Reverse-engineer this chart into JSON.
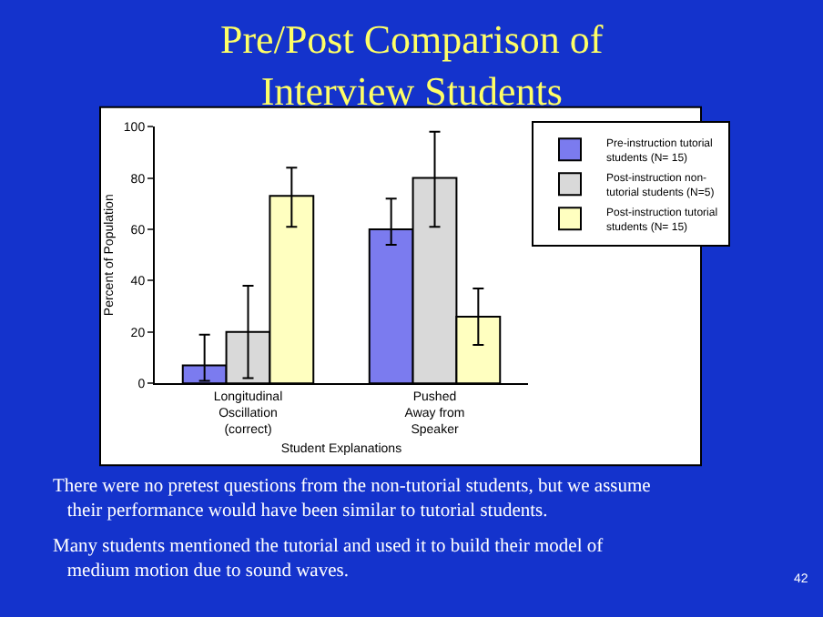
{
  "chart_data": {
    "type": "bar",
    "title": "Pre/Post Comparison of Interview Students",
    "categories": [
      "Longitudinal Oscillation (correct)",
      "Pushed Away from Speaker"
    ],
    "series": [
      {
        "name": "Pre-instruction tutorial students (N= 15)",
        "color": "#7b7bef",
        "values": [
          7,
          60
        ],
        "errors": [
          [
            1,
            19
          ],
          [
            54,
            72
          ]
        ]
      },
      {
        "name": "Post-instruction non-tutorial students (N=5)",
        "color": "#d9d9d9",
        "values": [
          20,
          80
        ],
        "errors": [
          [
            2,
            38
          ],
          [
            61,
            98
          ]
        ]
      },
      {
        "name": "Post-instruction tutorial students (N= 15)",
        "color": "#ffffc0",
        "values": [
          73,
          26
        ],
        "errors": [
          [
            61,
            84
          ],
          [
            15,
            37
          ]
        ]
      }
    ],
    "xlabel": "Student Explanations",
    "ylabel": "Percent of Population",
    "ylim": [
      0,
      100
    ],
    "yticks": [
      0,
      20,
      40,
      60,
      80,
      100
    ],
    "legend": "right",
    "annotations": [
      "There were no pretest questions from the non-tutorial students, but we assume their performance would have been similar to tutorial students.",
      "Many students mentioned the tutorial and used it to build their model of medium motion due to sound waves.",
      "42"
    ]
  }
}
